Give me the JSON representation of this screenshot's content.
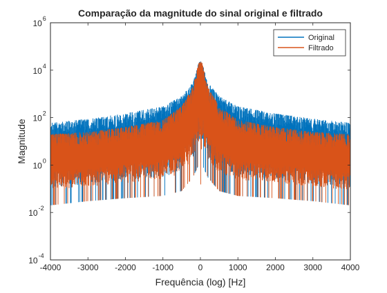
{
  "chart_data": {
    "type": "line",
    "title": "Comparação da magnitude do sinal original e filtrado",
    "xlabel": "Frequência (log) [Hz]",
    "ylabel": "Magnitude",
    "xlim": [
      -4000,
      4000
    ],
    "ylim": [
      0.0001,
      1000000
    ],
    "y_scale": "log",
    "grid": false,
    "legend_position": "top-right",
    "x_ticks": [
      {
        "value": -4000,
        "label": "-4000"
      },
      {
        "value": -3000,
        "label": "-3000"
      },
      {
        "value": -2000,
        "label": "-2000"
      },
      {
        "value": -1000,
        "label": "-1000"
      },
      {
        "value": 0,
        "label": "0"
      },
      {
        "value": 1000,
        "label": "1000"
      },
      {
        "value": 2000,
        "label": "2000"
      },
      {
        "value": 3000,
        "label": "3000"
      },
      {
        "value": 4000,
        "label": "4000"
      }
    ],
    "y_ticks": [
      {
        "value": 0.0001,
        "base": "10",
        "exp": "-4"
      },
      {
        "value": 0.01,
        "base": "10",
        "exp": "-2"
      },
      {
        "value": 1,
        "base": "10",
        "exp": "0"
      },
      {
        "value": 100,
        "base": "10",
        "exp": "2"
      },
      {
        "value": 10000,
        "base": "10",
        "exp": "4"
      },
      {
        "value": 1000000,
        "base": "10",
        "exp": "6"
      }
    ],
    "series": [
      {
        "name": "Original",
        "color": "#0072BD",
        "envelope": {
          "x": [
            -4000,
            -3000,
            -2000,
            -1000,
            -500,
            -200,
            -50,
            0,
            50,
            200,
            500,
            1000,
            2000,
            3000,
            4000
          ],
          "upper": [
            60,
            90,
            150,
            300,
            800,
            3000,
            20000,
            25000,
            20000,
            3000,
            800,
            300,
            150,
            90,
            60
          ],
          "lower": [
            0.02,
            0.03,
            0.04,
            0.05,
            0.08,
            0.3,
            1,
            0.1,
            1,
            0.3,
            0.08,
            0.05,
            0.04,
            0.03,
            0.02
          ]
        }
      },
      {
        "name": "Filtrado",
        "color": "#D95319",
        "envelope": {
          "x": [
            -4000,
            -3000,
            -2000,
            -1000,
            -500,
            -200,
            -50,
            0,
            50,
            200,
            500,
            1000,
            2000,
            3000,
            4000
          ],
          "upper": [
            20,
            25,
            40,
            80,
            300,
            2000,
            20000,
            25000,
            20000,
            2000,
            300,
            80,
            40,
            25,
            20
          ],
          "lower": [
            0.02,
            0.03,
            0.04,
            0.05,
            0.08,
            0.3,
            1,
            0.1,
            1,
            0.3,
            0.08,
            0.05,
            0.04,
            0.03,
            0.02
          ]
        }
      }
    ]
  }
}
